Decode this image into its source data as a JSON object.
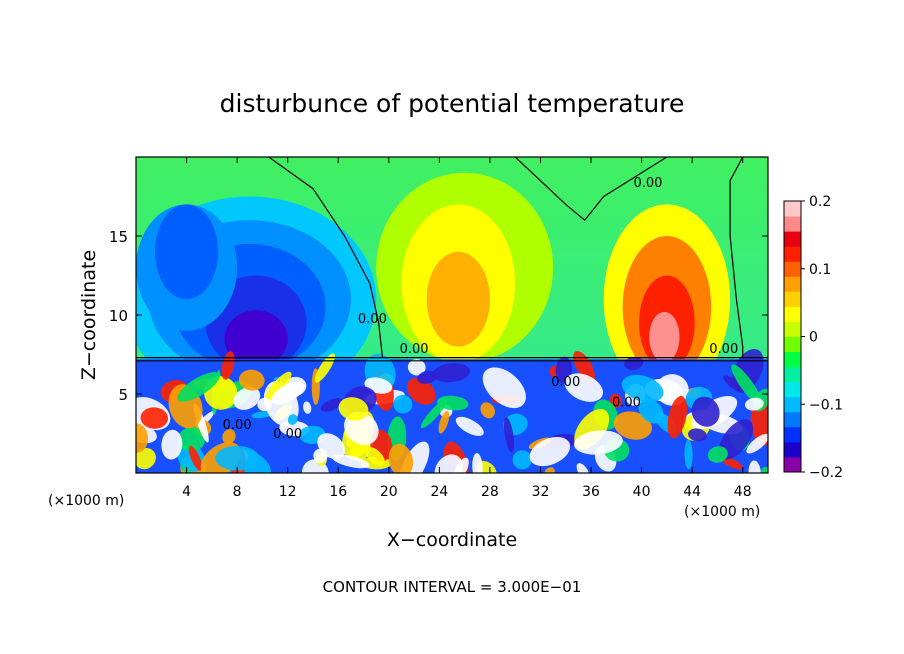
{
  "chart_data": {
    "type": "heatmap",
    "title": "disturbunce of potential temperature",
    "xlabel": "X−coordinate",
    "ylabel": "Z−coordinate",
    "x_unit_left": "(×1000 m)",
    "x_unit_right": "(×1000 m)",
    "xlim": [
      0,
      50
    ],
    "ylim": [
      0,
      20
    ],
    "x_ticks": [
      4,
      8,
      12,
      16,
      20,
      24,
      28,
      32,
      36,
      40,
      44,
      48
    ],
    "x_tick_labels": [
      "4",
      "8",
      "12",
      "16",
      "20",
      "24",
      "28",
      "32",
      "36",
      "40",
      "44",
      "48"
    ],
    "y_ticks": [
      5,
      10,
      15
    ],
    "y_tick_labels": [
      "5",
      "10",
      "15"
    ],
    "colorbar": {
      "range": [
        -0.2,
        0.2
      ],
      "ticks": [
        0.2,
        0.1,
        0,
        -0.1,
        -0.2
      ],
      "tick_labels": [
        "0.2",
        "0.1",
        "0",
        "−0.1",
        "−0.2"
      ],
      "colors": [
        "#8a00a8",
        "#1a00c8",
        "#0030ff",
        "#0078ff",
        "#00b8ff",
        "#00e8e8",
        "#00f0a0",
        "#00ff40",
        "#70ff00",
        "#c8ff00",
        "#ffff00",
        "#ffd000",
        "#ffa000",
        "#ff6000",
        "#ff2000",
        "#e80010",
        "#ff8888",
        "#ffc8c8"
      ]
    },
    "contour_labels": [
      "0.00",
      "0.00",
      "0.00",
      "0.00",
      "0.00",
      "0.00",
      "0.00",
      "0.00"
    ],
    "footer": "CONTOUR INTERVAL = 3.000E−01"
  }
}
